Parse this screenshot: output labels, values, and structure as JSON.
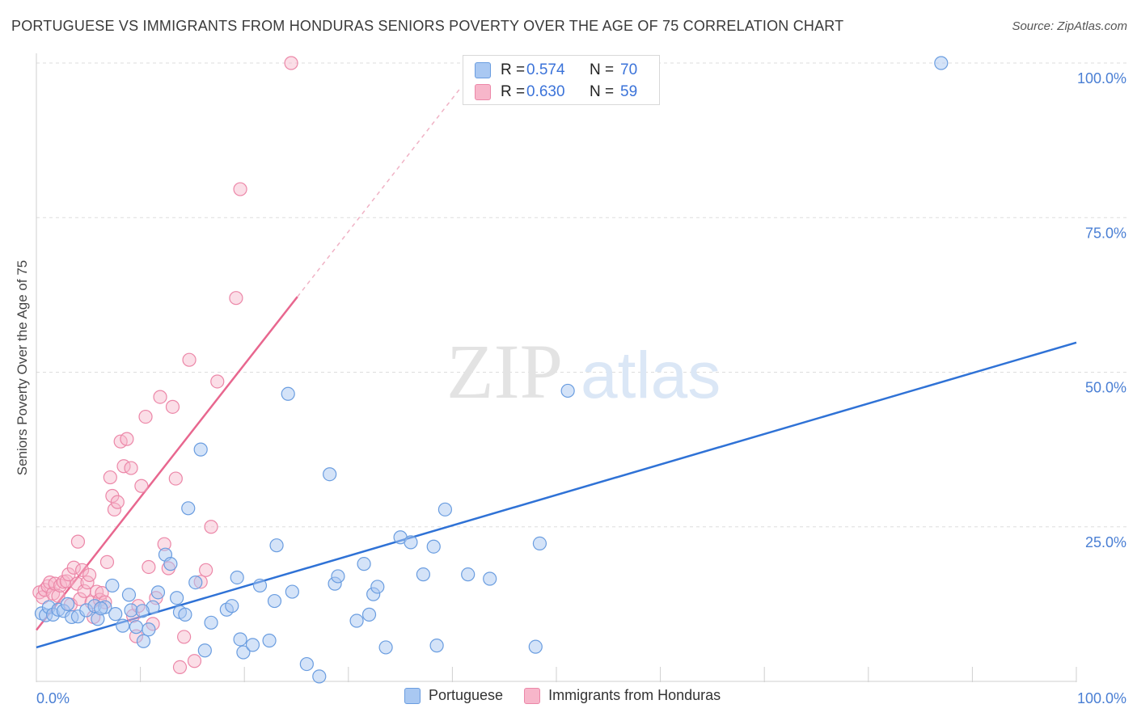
{
  "title": "PORTUGUESE VS IMMIGRANTS FROM HONDURAS SENIORS POVERTY OVER THE AGE OF 75 CORRELATION CHART",
  "source": "Source: ZipAtlas.com",
  "watermark": {
    "zip": "ZIP",
    "atlas": "atlas"
  },
  "legend_top": {
    "rows": [
      {
        "r_label": "R =",
        "r_value": "0.574",
        "n_label": "N =",
        "n_value": "70"
      },
      {
        "r_label": "R =",
        "r_value": "0.630",
        "n_label": "N =",
        "n_value": "59"
      }
    ]
  },
  "colors": {
    "blue_fill": "#a9c8f2",
    "blue_stroke": "#6a9de0",
    "blue_line": "#2f72d6",
    "pink_fill": "#f7b6ca",
    "pink_stroke": "#ec87a8",
    "pink_line": "#e8678f",
    "tick_label": "#4a7fd4",
    "grid": "#dddddd"
  },
  "chart_data": {
    "type": "scatter",
    "title": "PORTUGUESE VS IMMIGRANTS FROM HONDURAS SENIORS POVERTY OVER THE AGE OF 75 CORRELATION CHART",
    "xlabel": "",
    "ylabel": "Seniors Poverty Over the Age of 75",
    "xlim": [
      0,
      100
    ],
    "ylim": [
      0,
      100
    ],
    "x_tick_labels": [
      "0.0%",
      "100.0%"
    ],
    "y_tick_labels": [
      "100.0%",
      "75.0%",
      "50.0%",
      "25.0%"
    ],
    "y_ticks": [
      100,
      75,
      50,
      25
    ],
    "grid": true,
    "legend": "bottom-center",
    "series": [
      {
        "name": "Portuguese",
        "r": 0.574,
        "n": 70,
        "trend": {
          "x0": 0,
          "y0": 5.5,
          "x1": 100,
          "y1": 54.8
        },
        "points": [
          [
            0.5,
            11
          ],
          [
            0.9,
            10.7
          ],
          [
            1.2,
            12
          ],
          [
            1.6,
            10.8
          ],
          [
            2.1,
            11.6
          ],
          [
            2.6,
            11.4
          ],
          [
            3,
            12.5
          ],
          [
            3.4,
            10.4
          ],
          [
            4,
            10.5
          ],
          [
            4.8,
            11.5
          ],
          [
            5.6,
            12.2
          ],
          [
            5.9,
            10.1
          ],
          [
            6.6,
            12
          ],
          [
            7.3,
            15.5
          ],
          [
            7.6,
            10.9
          ],
          [
            8.3,
            9
          ],
          [
            8.9,
            14
          ],
          [
            9.1,
            11.5
          ],
          [
            9.6,
            8.8
          ],
          [
            10.3,
            6.5
          ],
          [
            10.8,
            8.4
          ],
          [
            11.2,
            12
          ],
          [
            11.7,
            14.4
          ],
          [
            12.4,
            20.5
          ],
          [
            12.9,
            19
          ],
          [
            13.5,
            13.5
          ],
          [
            13.8,
            11.2
          ],
          [
            14.3,
            10.8
          ],
          [
            14.6,
            28
          ],
          [
            15.3,
            16
          ],
          [
            15.8,
            37.5
          ],
          [
            16.2,
            5
          ],
          [
            16.8,
            9.5
          ],
          [
            18.3,
            11.6
          ],
          [
            18.8,
            12.2
          ],
          [
            19.3,
            16.8
          ],
          [
            19.6,
            6.8
          ],
          [
            19.9,
            4.7
          ],
          [
            20.8,
            5.9
          ],
          [
            21.5,
            15.5
          ],
          [
            22.4,
            6.6
          ],
          [
            22.9,
            13
          ],
          [
            23.1,
            22
          ],
          [
            24.2,
            46.5
          ],
          [
            24.6,
            14.5
          ],
          [
            26,
            2.8
          ],
          [
            27.2,
            0.8
          ],
          [
            28.2,
            33.5
          ],
          [
            28.7,
            15.8
          ],
          [
            29,
            17
          ],
          [
            30.8,
            9.8
          ],
          [
            31.5,
            19
          ],
          [
            32,
            10.8
          ],
          [
            32.4,
            14.1
          ],
          [
            32.8,
            15.3
          ],
          [
            33.6,
            5.5
          ],
          [
            35,
            23.3
          ],
          [
            36,
            22.5
          ],
          [
            37.2,
            17.3
          ],
          [
            38.2,
            21.8
          ],
          [
            38.5,
            5.8
          ],
          [
            39.3,
            27.8
          ],
          [
            41.5,
            17.3
          ],
          [
            43.6,
            16.6
          ],
          [
            48,
            5.6
          ],
          [
            48.4,
            22.3
          ],
          [
            51.1,
            47
          ],
          [
            87,
            100
          ],
          [
            6.2,
            11.8
          ],
          [
            10.2,
            11.4
          ]
        ]
      },
      {
        "name": "Immigrants from Honduras",
        "r": 0.63,
        "n": 59,
        "trend": {
          "x0": 0,
          "y0": 8.3,
          "x1": 25.1,
          "y1": 62.2
        },
        "trend_dashed": {
          "x0": 25.1,
          "y0": 62.2,
          "x1": 40.8,
          "y1": 96
        },
        "points": [
          [
            0.3,
            14.4
          ],
          [
            0.6,
            13.6
          ],
          [
            0.8,
            14.8
          ],
          [
            1.1,
            15.4
          ],
          [
            1.3,
            16
          ],
          [
            1.6,
            14.2
          ],
          [
            1.8,
            15.8
          ],
          [
            2.1,
            13.8
          ],
          [
            2.3,
            15.5
          ],
          [
            2.6,
            16.1
          ],
          [
            2.9,
            16.2
          ],
          [
            3.1,
            17.3
          ],
          [
            3.3,
            12.4
          ],
          [
            3.6,
            18.4
          ],
          [
            3.9,
            15.8
          ],
          [
            4,
            22.6
          ],
          [
            4.2,
            13.3
          ],
          [
            4.4,
            18
          ],
          [
            4.6,
            14.6
          ],
          [
            4.9,
            16
          ],
          [
            5.1,
            17.2
          ],
          [
            5.3,
            12.8
          ],
          [
            5.5,
            10.4
          ],
          [
            5.8,
            14.5
          ],
          [
            6.1,
            13.2
          ],
          [
            6.3,
            14.3
          ],
          [
            6.6,
            12.8
          ],
          [
            6.8,
            19.3
          ],
          [
            7.1,
            33
          ],
          [
            7.3,
            30
          ],
          [
            7.5,
            27.8
          ],
          [
            7.8,
            29
          ],
          [
            8.1,
            38.8
          ],
          [
            8.4,
            34.8
          ],
          [
            8.7,
            39.2
          ],
          [
            9.1,
            34.5
          ],
          [
            9.3,
            10.6
          ],
          [
            9.6,
            7.3
          ],
          [
            9.8,
            12.2
          ],
          [
            10.1,
            31.6
          ],
          [
            10.5,
            42.8
          ],
          [
            10.8,
            18.5
          ],
          [
            11.2,
            9.3
          ],
          [
            11.5,
            13.5
          ],
          [
            11.9,
            46
          ],
          [
            12.3,
            22.2
          ],
          [
            12.7,
            18.3
          ],
          [
            13.1,
            44.4
          ],
          [
            13.4,
            32.8
          ],
          [
            13.8,
            2.3
          ],
          [
            14.2,
            7.2
          ],
          [
            14.7,
            52
          ],
          [
            15.2,
            3.3
          ],
          [
            15.8,
            16.1
          ],
          [
            16.3,
            18
          ],
          [
            16.8,
            25
          ],
          [
            17.4,
            48.5
          ],
          [
            19.2,
            62
          ],
          [
            19.6,
            79.6
          ]
        ]
      }
    ],
    "extra_points_pink": [
      [
        24.5,
        100
      ]
    ]
  },
  "legend_bottom": {
    "items": [
      {
        "label": "Portuguese"
      },
      {
        "label": "Immigrants from Honduras"
      }
    ]
  }
}
